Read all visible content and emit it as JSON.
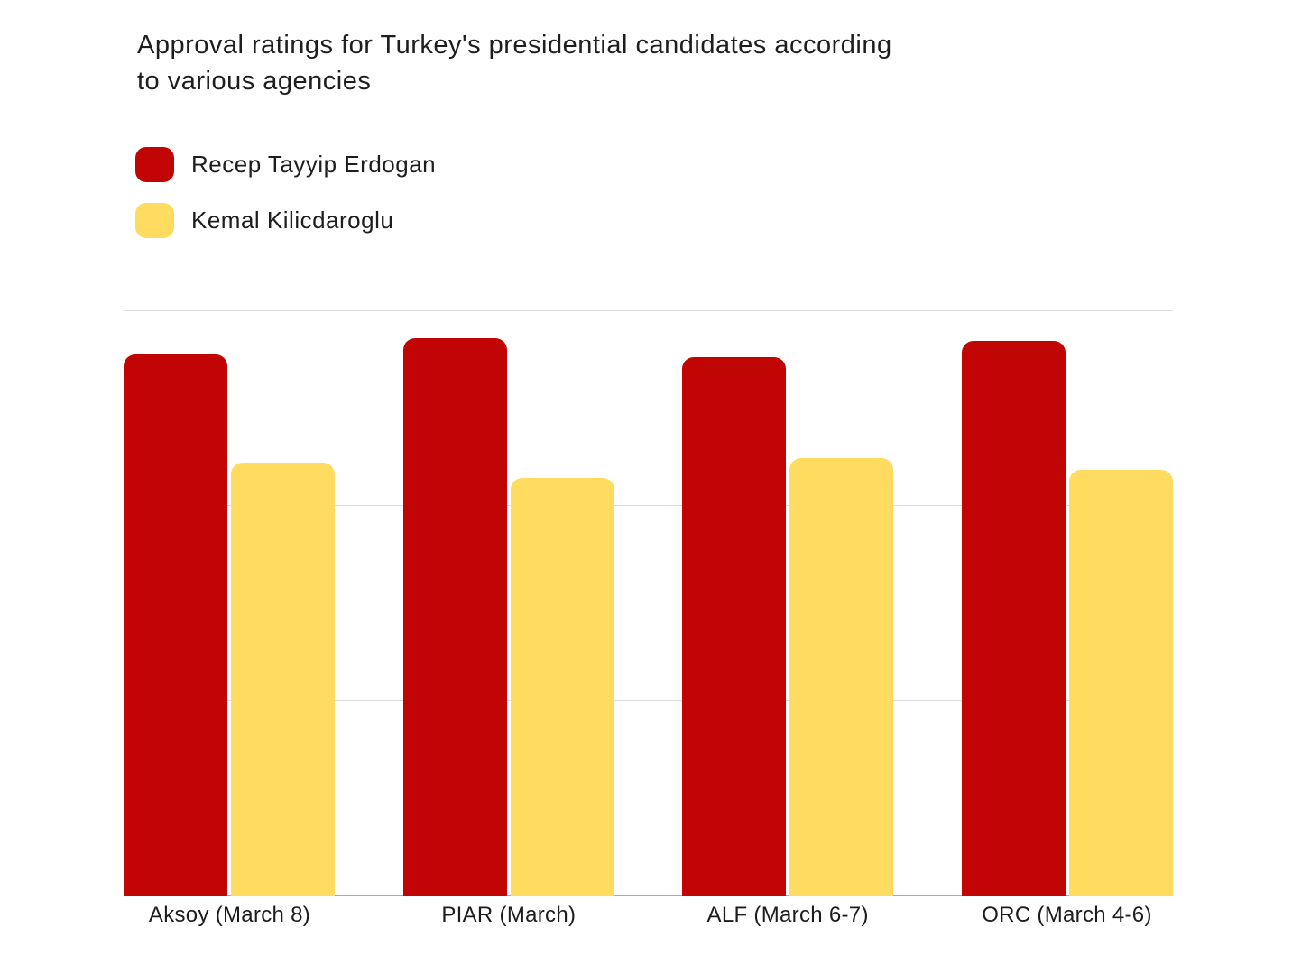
{
  "page": {
    "title_lines": [
      "Approval ratings for Turkey's presidential candidates according",
      "to various agencies"
    ]
  },
  "chart_data": {
    "type": "bar",
    "title": "Approval ratings for Turkey's presidential candidates according to various agencies",
    "categories": [
      "Aksoy (March 8)",
      "PIAR (March)",
      "ALF (March 6-7)",
      "ORC (March 4-6)"
    ],
    "series": [
      {
        "name": "Recep Tayyip Erdogan",
        "color": "#C10505",
        "values": [
          55.6,
          57.2,
          55.3,
          56.9
        ]
      },
      {
        "name": "Kemal Kilicdaroglu",
        "color": "#FFDB5F",
        "values": [
          44.4,
          42.9,
          44.9,
          43.7
        ]
      }
    ],
    "xlabel": "",
    "ylabel": "",
    "ylim": [
      0,
      60
    ],
    "gridline_values": [
      20,
      40,
      60
    ],
    "grid": "horizontal gridlines only, no y-axis tick labels",
    "legend_position": "top-left",
    "colors": {
      "background": "#FFFFFF",
      "gridline": "#DCDCDC",
      "axis_line": "#A9A9A9",
      "text": "#1E1E1E"
    }
  }
}
